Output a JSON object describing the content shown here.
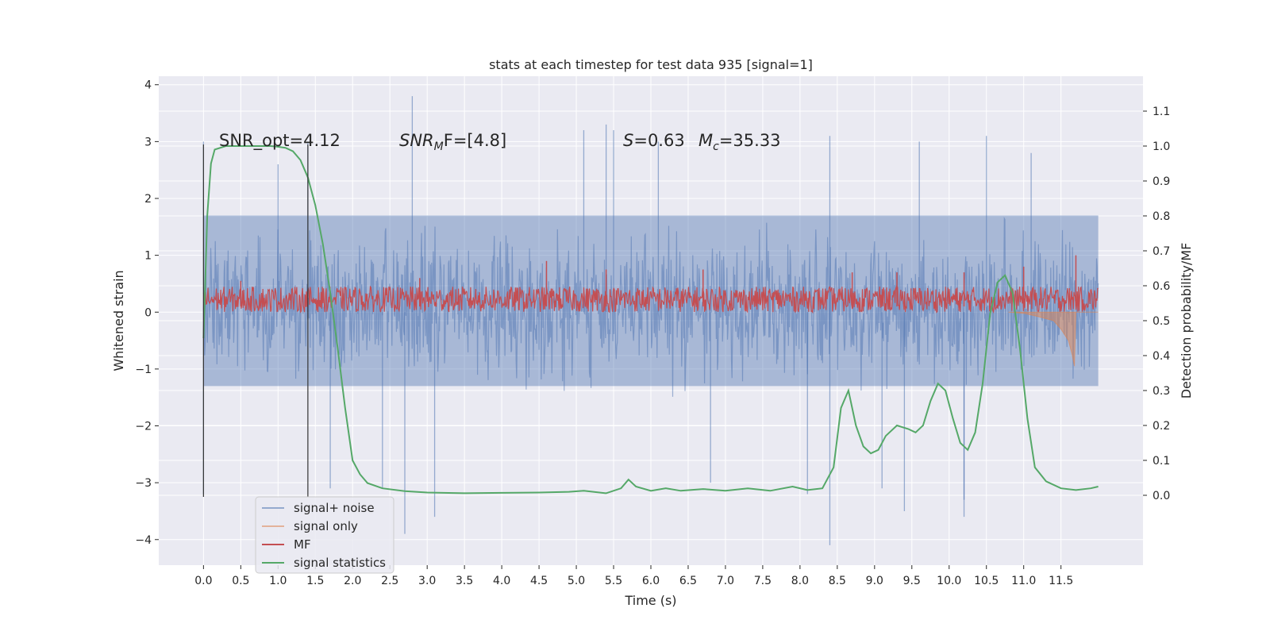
{
  "chart_data": {
    "type": "line",
    "title": "stats at each timestep for test data 935 [signal=1]",
    "xlabel": "Time (s)",
    "ylabel": "Whitened strain",
    "y2label": "Detection probability/MF",
    "xlim": [
      -0.6,
      12.6
    ],
    "ylim": [
      -4.45,
      4.15
    ],
    "y2lim": [
      -0.2,
      1.2
    ],
    "xticks": [
      "0.0",
      "0.5",
      "1.0",
      "1.5",
      "2.0",
      "2.5",
      "3.0",
      "3.5",
      "4.0",
      "4.5",
      "5.0",
      "5.5",
      "6.0",
      "6.5",
      "7.0",
      "7.5",
      "8.0",
      "8.5",
      "9.0",
      "9.5",
      "10.0",
      "10.5",
      "11.0",
      "11.5"
    ],
    "xtick_values": [
      0,
      0.5,
      1,
      1.5,
      2,
      2.5,
      3,
      3.5,
      4,
      4.5,
      5,
      5.5,
      6,
      6.5,
      7,
      7.5,
      8,
      8.5,
      9,
      9.5,
      10,
      10.5,
      11,
      11.5
    ],
    "yticks": [
      -4,
      -3,
      -2,
      -1,
      0,
      1,
      2,
      3,
      4
    ],
    "y2ticks": [
      0.0,
      0.1,
      0.2,
      0.3,
      0.4,
      0.5,
      0.6,
      0.7,
      0.8,
      0.9,
      1.0,
      1.1
    ],
    "grid": true,
    "legend_position": "lower-left",
    "annotations": {
      "snr_opt": "SNR_opt=4.12",
      "snr_mf_prefix": "SNR",
      "snr_mf_sub": "M",
      "snr_mf_suffix": "F=[4.8]",
      "s_label": "S",
      "s_value": "=0.63",
      "mc_label": "M",
      "mc_sub": "c",
      "mc_value": "=35.33"
    },
    "vertical_lines": [
      0.0,
      1.4
    ],
    "series": [
      {
        "name": "signal+ noise",
        "color": "#4c72b0",
        "axis": "left",
        "t_range": [
          0.0,
          12.0
        ],
        "band": [
          -1.3,
          1.7
        ],
        "extremes": [
          [
            0.0,
            3.0
          ],
          [
            0.0,
            -3.2
          ],
          [
            1.0,
            2.6
          ],
          [
            1.4,
            3.0
          ],
          [
            1.7,
            -3.1
          ],
          [
            2.4,
            -3.1
          ],
          [
            2.8,
            3.8
          ],
          [
            2.7,
            -3.9
          ],
          [
            3.1,
            -3.6
          ],
          [
            5.1,
            3.2
          ],
          [
            5.4,
            3.3
          ],
          [
            5.5,
            3.2
          ],
          [
            6.1,
            3.0
          ],
          [
            6.8,
            -3.0
          ],
          [
            8.1,
            -3.2
          ],
          [
            8.4,
            -4.1
          ],
          [
            8.4,
            3.1
          ],
          [
            9.1,
            -3.1
          ],
          [
            9.4,
            -3.5
          ],
          [
            9.6,
            3.0
          ],
          [
            10.2,
            -3.3
          ],
          [
            10.2,
            -3.6
          ],
          [
            10.5,
            3.1
          ],
          [
            11.1,
            2.8
          ]
        ]
      },
      {
        "name": "signal only",
        "color": "#dd8452",
        "axis": "left",
        "points": [
          [
            10.8,
            0.0
          ],
          [
            11.0,
            -0.02
          ],
          [
            11.2,
            -0.08
          ],
          [
            11.4,
            -0.15
          ],
          [
            11.5,
            -0.3
          ],
          [
            11.6,
            -0.5
          ],
          [
            11.65,
            -0.75
          ],
          [
            11.68,
            -0.95
          ],
          [
            11.7,
            0.0
          ],
          [
            12.0,
            0.0
          ]
        ]
      },
      {
        "name": "MF",
        "color": "#c44e52",
        "axis": "left",
        "t_range": [
          0.0,
          12.0
        ],
        "band": [
          0.0,
          0.45
        ],
        "peaks": [
          [
            0.5,
            0.55
          ],
          [
            2.9,
            0.6
          ],
          [
            4.6,
            0.9
          ],
          [
            5.4,
            0.75
          ],
          [
            6.7,
            0.75
          ],
          [
            8.7,
            0.7
          ],
          [
            9.3,
            0.7
          ],
          [
            10.2,
            0.7
          ],
          [
            11.0,
            0.8
          ],
          [
            11.7,
            1.0
          ]
        ]
      },
      {
        "name": "signal statistics",
        "color": "#55a868",
        "axis": "right",
        "points": [
          [
            0.0,
            0.45
          ],
          [
            0.05,
            0.8
          ],
          [
            0.1,
            0.95
          ],
          [
            0.15,
            0.99
          ],
          [
            0.3,
            1.0
          ],
          [
            0.6,
            1.0
          ],
          [
            0.9,
            1.0
          ],
          [
            1.0,
            0.998
          ],
          [
            1.1,
            0.995
          ],
          [
            1.2,
            0.985
          ],
          [
            1.3,
            0.96
          ],
          [
            1.4,
            0.91
          ],
          [
            1.5,
            0.83
          ],
          [
            1.6,
            0.72
          ],
          [
            1.7,
            0.58
          ],
          [
            1.8,
            0.42
          ],
          [
            1.9,
            0.25
          ],
          [
            2.0,
            0.1
          ],
          [
            2.1,
            0.06
          ],
          [
            2.2,
            0.035
          ],
          [
            2.4,
            0.02
          ],
          [
            2.7,
            0.012
          ],
          [
            3.0,
            0.008
          ],
          [
            3.5,
            0.006
          ],
          [
            4.0,
            0.007
          ],
          [
            4.5,
            0.008
          ],
          [
            4.9,
            0.01
          ],
          [
            5.1,
            0.013
          ],
          [
            5.4,
            0.006
          ],
          [
            5.6,
            0.02
          ],
          [
            5.7,
            0.045
          ],
          [
            5.8,
            0.025
          ],
          [
            6.0,
            0.013
          ],
          [
            6.2,
            0.02
          ],
          [
            6.4,
            0.013
          ],
          [
            6.7,
            0.018
          ],
          [
            7.0,
            0.013
          ],
          [
            7.3,
            0.02
          ],
          [
            7.6,
            0.013
          ],
          [
            7.9,
            0.025
          ],
          [
            8.1,
            0.015
          ],
          [
            8.3,
            0.02
          ],
          [
            8.45,
            0.08
          ],
          [
            8.55,
            0.25
          ],
          [
            8.65,
            0.3
          ],
          [
            8.75,
            0.2
          ],
          [
            8.85,
            0.14
          ],
          [
            8.95,
            0.12
          ],
          [
            9.05,
            0.13
          ],
          [
            9.15,
            0.17
          ],
          [
            9.3,
            0.2
          ],
          [
            9.45,
            0.19
          ],
          [
            9.55,
            0.18
          ],
          [
            9.65,
            0.2
          ],
          [
            9.75,
            0.27
          ],
          [
            9.85,
            0.32
          ],
          [
            9.95,
            0.3
          ],
          [
            10.05,
            0.22
          ],
          [
            10.15,
            0.15
          ],
          [
            10.25,
            0.13
          ],
          [
            10.35,
            0.18
          ],
          [
            10.45,
            0.32
          ],
          [
            10.55,
            0.52
          ],
          [
            10.65,
            0.61
          ],
          [
            10.75,
            0.63
          ],
          [
            10.85,
            0.58
          ],
          [
            10.95,
            0.42
          ],
          [
            11.05,
            0.22
          ],
          [
            11.15,
            0.08
          ],
          [
            11.3,
            0.04
          ],
          [
            11.5,
            0.02
          ],
          [
            11.7,
            0.015
          ],
          [
            11.9,
            0.02
          ],
          [
            12.0,
            0.025
          ]
        ]
      }
    ]
  }
}
